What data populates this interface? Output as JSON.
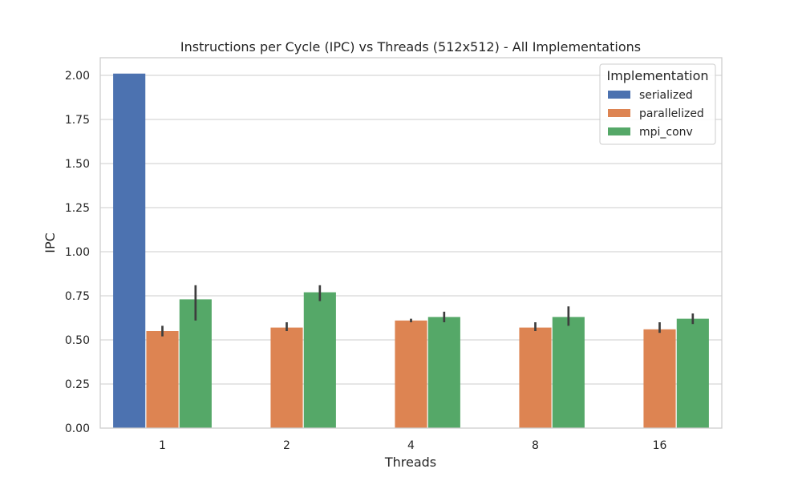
{
  "chart_data": {
    "type": "bar",
    "title": "Instructions per Cycle (IPC) vs Threads (512x512) - All Implementations",
    "xlabel": "Threads",
    "ylabel": "IPC",
    "categories": [
      "1",
      "2",
      "4",
      "8",
      "16"
    ],
    "ylim": [
      0,
      2.1
    ],
    "yticks": [
      "0.00",
      "0.25",
      "0.50",
      "0.75",
      "1.00",
      "1.25",
      "1.50",
      "1.75",
      "2.00"
    ],
    "grid": true,
    "legend": {
      "title": "Implementation",
      "placement": "top-right"
    },
    "series": [
      {
        "name": "serialized",
        "color": "#4c72b0",
        "values": [
          2.01,
          null,
          null,
          null,
          null
        ],
        "err_low": [
          null,
          null,
          null,
          null,
          null
        ],
        "err_high": [
          null,
          null,
          null,
          null,
          null
        ]
      },
      {
        "name": "parallelized",
        "color": "#dd8452",
        "values": [
          0.55,
          0.57,
          0.61,
          0.57,
          0.56
        ],
        "err_low": [
          0.52,
          0.55,
          0.6,
          0.55,
          0.54
        ],
        "err_high": [
          0.58,
          0.6,
          0.62,
          0.6,
          0.6
        ]
      },
      {
        "name": "mpi_conv",
        "color": "#55a868",
        "values": [
          0.73,
          0.77,
          0.63,
          0.63,
          0.62
        ],
        "err_low": [
          0.61,
          0.72,
          0.6,
          0.58,
          0.59
        ],
        "err_high": [
          0.81,
          0.81,
          0.66,
          0.69,
          0.65
        ]
      }
    ]
  }
}
